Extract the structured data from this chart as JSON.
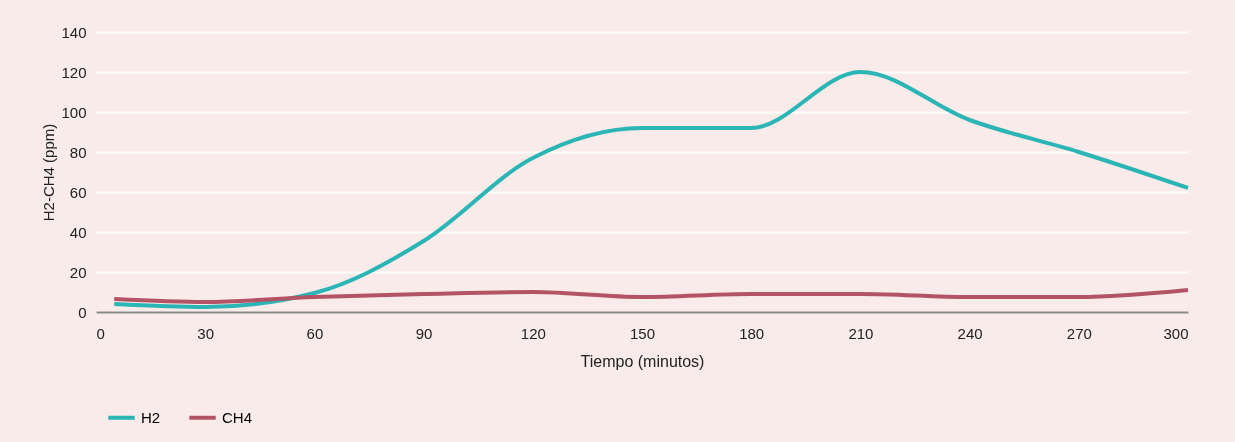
{
  "chart_data": {
    "type": "line",
    "xlabel": "Tiempo (minutos)",
    "ylabel": "H2-CH4 (ppm)",
    "x": [
      5,
      30,
      60,
      90,
      120,
      150,
      180,
      210,
      240,
      270,
      300
    ],
    "xlim": [
      0,
      300
    ],
    "xticks": [
      0,
      30,
      60,
      90,
      120,
      150,
      180,
      210,
      240,
      270,
      300
    ],
    "ylim": [
      0,
      140
    ],
    "yticks": [
      0,
      20,
      40,
      60,
      80,
      100,
      120,
      140
    ],
    "grid": "y",
    "legend": "bottom",
    "marker": "none",
    "line_style": "solid",
    "series": [
      {
        "name": "H2",
        "color": "#2bb5b5",
        "values": [
          4,
          2.5,
          9.5,
          35.5,
          77,
          92,
          92,
          120,
          96,
          80,
          62
        ]
      },
      {
        "name": "CH4",
        "color": "#b35466",
        "values": [
          6.5,
          5,
          7.5,
          9,
          10,
          7.5,
          9,
          9,
          7.5,
          7.5,
          11
        ]
      }
    ]
  }
}
